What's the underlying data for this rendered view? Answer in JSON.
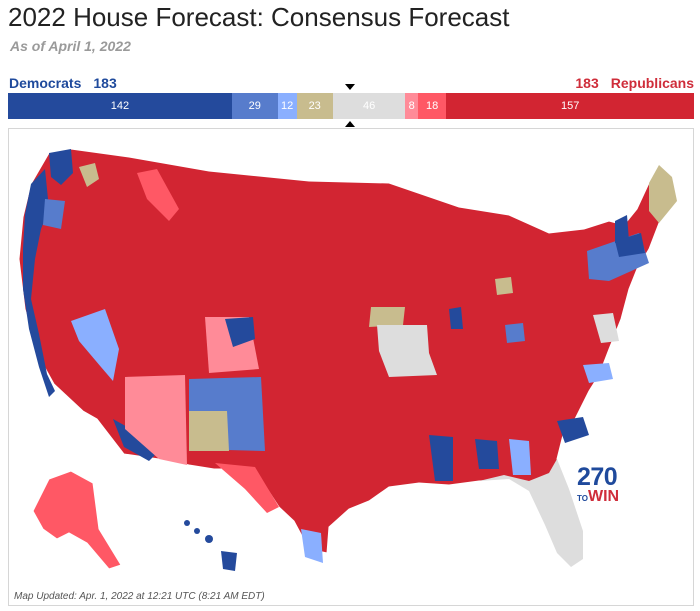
{
  "header": {
    "title": "2022 House Forecast: Consensus Forecast",
    "subtitle": "As of April 1, 2022"
  },
  "totals": {
    "dem_label": "Democrats",
    "dem_count": "183",
    "rep_label": "Republicans",
    "rep_count": "183"
  },
  "bar_segments": [
    {
      "label": "142",
      "seats": 142,
      "color": "#244a9c",
      "category": "safe-dem"
    },
    {
      "label": "29",
      "seats": 29,
      "color": "#577ccc",
      "category": "likely-dem"
    },
    {
      "label": "12",
      "seats": 12,
      "color": "#8aafff",
      "category": "lean-dem"
    },
    {
      "label": "23",
      "seats": 23,
      "color": "#c8bc8e",
      "category": "toss-up"
    },
    {
      "label": "46",
      "seats": 46,
      "color": "#dddddd",
      "category": "no-map"
    },
    {
      "label": "8",
      "seats": 8,
      "color": "#ff8b98",
      "category": "lean-rep"
    },
    {
      "label": "18",
      "seats": 18,
      "color": "#ff5865",
      "category": "likely-rep"
    },
    {
      "label": "157",
      "seats": 157,
      "color": "#d22532",
      "category": "safe-rep"
    }
  ],
  "map": {
    "base_color": "#d22532",
    "logo_top": "270",
    "logo_to": "TO",
    "logo_bottom": "WIN",
    "updated": "Map Updated: Apr. 1, 2022 at 12:21 UTC (8:21 AM EDT)"
  }
}
